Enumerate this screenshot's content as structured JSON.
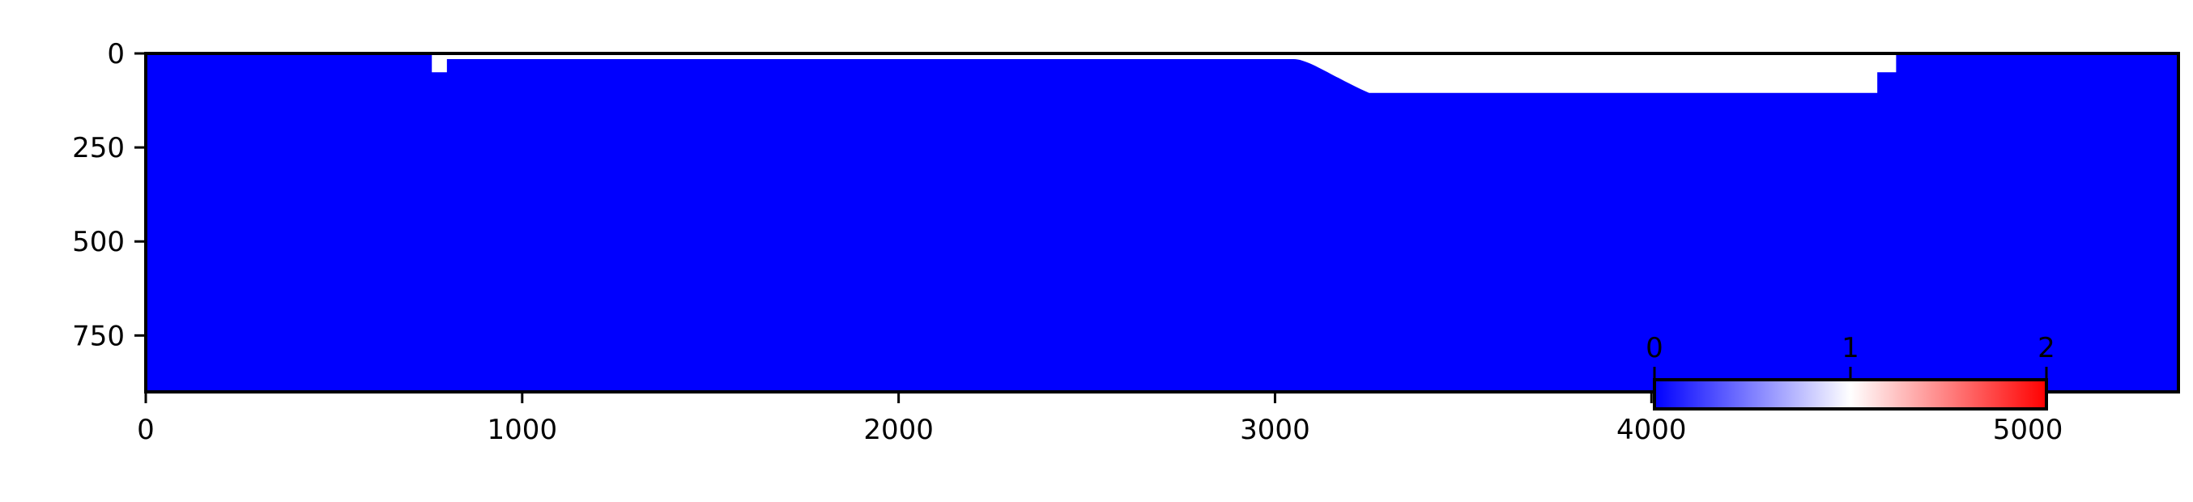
{
  "chart_data": {
    "type": "heatmap",
    "title": "",
    "xlabel": "",
    "ylabel": "",
    "xlim": [
      0,
      5400
    ],
    "ylim": [
      900,
      0
    ],
    "x_ticks": [
      0,
      1000,
      2000,
      3000,
      4000,
      5000
    ],
    "y_ticks": [
      0,
      250,
      500,
      750
    ],
    "grid": false,
    "colormap": "bwr",
    "colors": {
      "field": "#0000ff",
      "mask": "#ffffff",
      "cmap_low": "#0000ff",
      "cmap_mid": "#ffffff",
      "cmap_high": "#ff0000",
      "axis": "#000000"
    },
    "field_value": 0,
    "masked_region": {
      "description": "white (no data) strip along top boundary",
      "segments": [
        {
          "x": [
            760,
            800
          ],
          "y": [
            0,
            50
          ]
        },
        {
          "x": [
            800,
            3050
          ],
          "y": [
            0,
            15
          ]
        },
        {
          "x": [
            3050,
            3250
          ],
          "y": [
            0,
            120
          ],
          "shape": "curved ramp"
        },
        {
          "x": [
            3250,
            4600
          ],
          "y": [
            0,
            105
          ]
        },
        {
          "x": [
            4600,
            4650
          ],
          "y": [
            0,
            50
          ]
        }
      ]
    },
    "colorbar": {
      "placement": "lower-right inset",
      "range": [
        0,
        2
      ],
      "ticks": [
        0,
        1,
        2
      ],
      "tick_labels": [
        "0",
        "1",
        "2"
      ]
    }
  }
}
